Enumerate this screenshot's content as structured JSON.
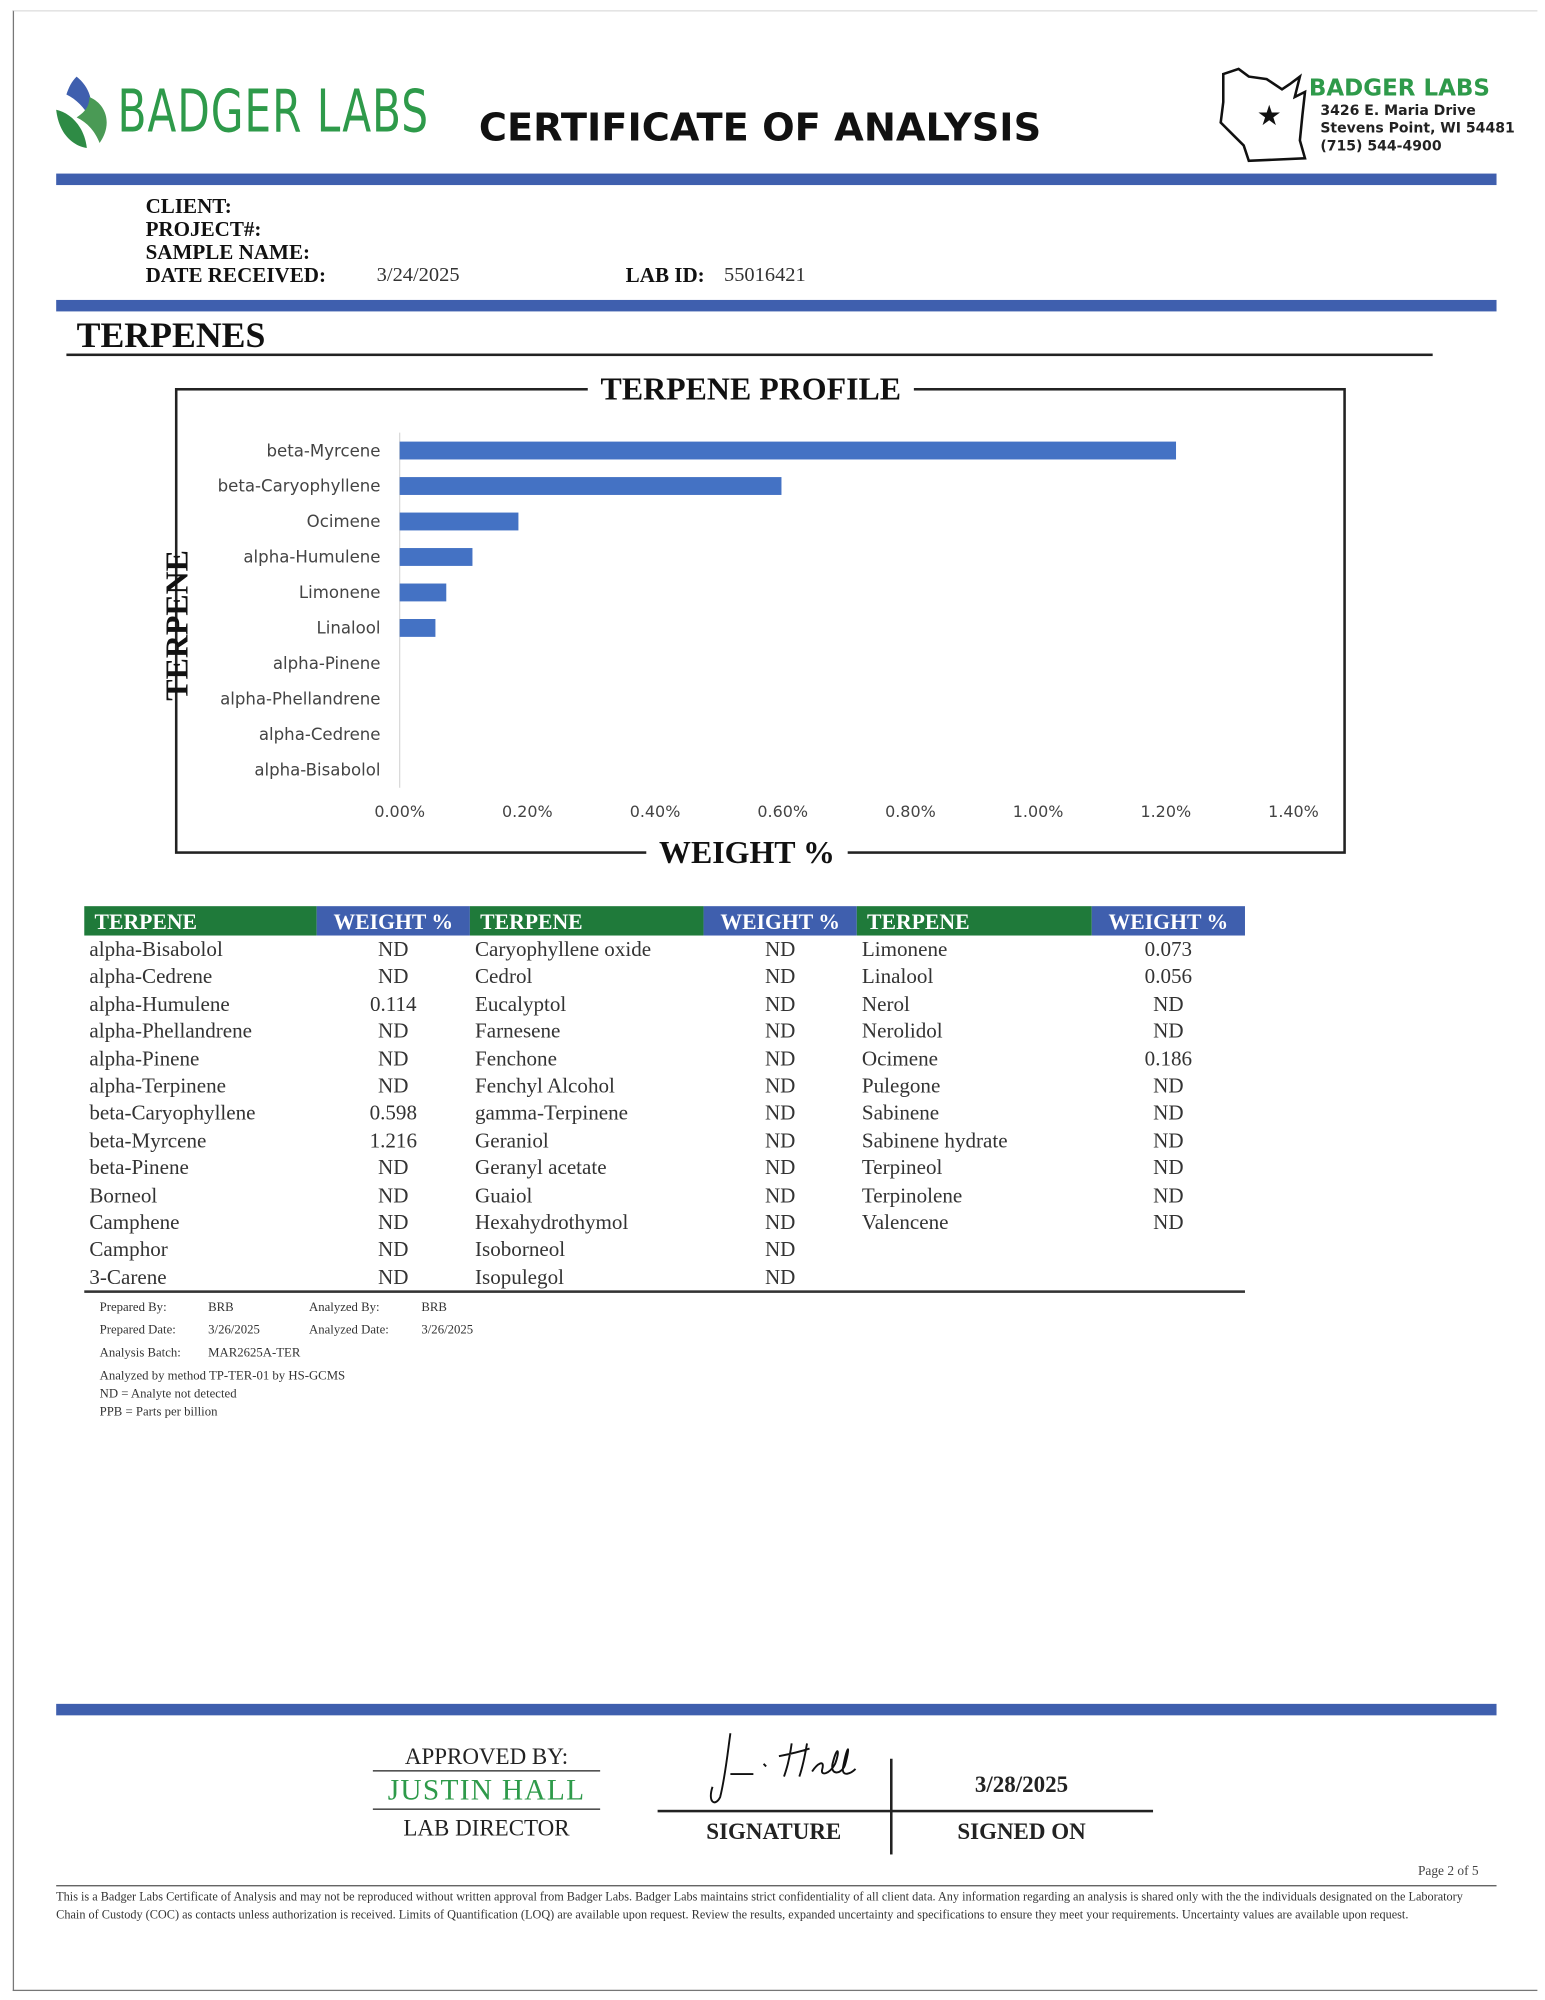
{
  "header": {
    "logo_text": "BADGER LABS",
    "title": "CERTIFICATE OF ANALYSIS",
    "address": {
      "name": "BADGER LABS",
      "street": "3426 E. Maria Drive",
      "city": "Stevens Point, WI 54481",
      "phone": "(715) 544-4900"
    }
  },
  "client_info": {
    "client_label": "CLIENT:",
    "project_label": "PROJECT#:",
    "sample_label": "SAMPLE NAME:",
    "date_received_label": "DATE RECEIVED:",
    "date_received": "3/24/2025",
    "lab_id_label": "LAB ID:",
    "lab_id": "55016421"
  },
  "section_title": "TERPENES",
  "chart_data": {
    "type": "bar",
    "orientation": "horizontal",
    "title": "TERPENE PROFILE",
    "x_label": "WEIGHT %",
    "y_label": "TERPENE",
    "categories": [
      "beta-Myrcene",
      "beta-Caryophyllene",
      "Ocimene",
      "alpha-Humulene",
      "Limonene",
      "Linalool",
      "alpha-Pinene",
      "alpha-Phellandrene",
      "alpha-Cedrene",
      "alpha-Bisabolol"
    ],
    "values": [
      1.216,
      0.598,
      0.186,
      0.114,
      0.073,
      0.056,
      0,
      0,
      0,
      0
    ],
    "color": "#4472c4",
    "xlim": [
      0,
      1.4
    ],
    "xticks": [
      {
        "value": 0,
        "label": "0.00%"
      },
      {
        "value": 0.2,
        "label": "0.20%"
      },
      {
        "value": 0.4,
        "label": "0.40%"
      },
      {
        "value": 0.6,
        "label": "0.60%"
      },
      {
        "value": 0.8,
        "label": "0.80%"
      },
      {
        "value": 1,
        "label": "1.00%"
      },
      {
        "value": 1.2,
        "label": "1.20%"
      },
      {
        "value": 1.4,
        "label": "1.40%"
      }
    ],
    "grid": false
  },
  "table": {
    "columns": [
      "TERPENE",
      "WEIGHT %"
    ],
    "groups": [
      [
        [
          "alpha-Bisabolol",
          "ND"
        ],
        [
          "alpha-Cedrene",
          "ND"
        ],
        [
          "alpha-Humulene",
          0.114
        ],
        [
          "alpha-Phellandrene",
          "ND"
        ],
        [
          "alpha-Pinene",
          "ND"
        ],
        [
          "alpha-Terpinene",
          "ND"
        ],
        [
          "beta-Caryophyllene",
          0.598
        ],
        [
          "beta-Myrcene",
          1.216
        ],
        [
          "beta-Pinene",
          "ND"
        ],
        [
          "Borneol",
          "ND"
        ],
        [
          "Camphene",
          "ND"
        ],
        [
          "Camphor",
          "ND"
        ],
        [
          "3-Carene",
          "ND"
        ]
      ],
      [
        [
          "Caryophyllene oxide",
          "ND"
        ],
        [
          "Cedrol",
          "ND"
        ],
        [
          "Eucalyptol",
          "ND"
        ],
        [
          "Farnesene",
          "ND"
        ],
        [
          "Fenchone",
          "ND"
        ],
        [
          "Fenchyl Alcohol",
          "ND"
        ],
        [
          "gamma-Terpinene",
          "ND"
        ],
        [
          "Geraniol",
          "ND"
        ],
        [
          "Geranyl acetate",
          "ND"
        ],
        [
          "Guaiol",
          "ND"
        ],
        [
          "Hexahydrothymol",
          "ND"
        ],
        [
          "Isoborneol",
          "ND"
        ],
        [
          "Isopulegol",
          "ND"
        ]
      ],
      [
        [
          "Limonene",
          0.073
        ],
        [
          "Linalool",
          0.056
        ],
        [
          "Nerol",
          "ND"
        ],
        [
          "Nerolidol",
          "ND"
        ],
        [
          "Ocimene",
          0.186
        ],
        [
          "Pulegone",
          "ND"
        ],
        [
          "Sabinene",
          "ND"
        ],
        [
          "Sabinene hydrate",
          "ND"
        ],
        [
          "Terpineol",
          "ND"
        ],
        [
          "Terpinolene",
          "ND"
        ],
        [
          "Valencene",
          "ND"
        ]
      ]
    ]
  },
  "notes": {
    "rows": [
      [
        "Prepared By:",
        "BRB",
        "Analyzed By:",
        "BRB"
      ],
      [
        "Prepared Date:",
        "3/26/2025",
        "Analyzed Date:",
        "3/26/2025"
      ],
      [
        "Analysis Batch:",
        "MAR2625A-TER"
      ]
    ],
    "lines": [
      "Analyzed by method TP-TER-01 by HS-GCMS",
      "ND = Analyte not detected",
      "PPB = Parts per billion"
    ]
  },
  "approval": {
    "approved_by_label": "APPROVED BY:",
    "name": "JUSTIN HALL",
    "role": "LAB DIRECTOR",
    "signature_label": "SIGNATURE",
    "signed_on_label": "SIGNED ON",
    "signed_on": "3/28/2025"
  },
  "footer": {
    "page": "Page 2 of 5",
    "disclaimer": "This is a Badger Labs Certificate of Analysis and may not be reproduced without written approval from Badger Labs. Badger Labs maintains strict confidentiality of all client data. Any information regarding an analysis is shared only with the the individuals designated on the Laboratory Chain of Custody (COC) as contacts unless authorization is received. Limits of Quantification (LOQ) are available upon request. Review the results, expanded uncertainty and specifications to ensure they meet your requirements. Uncertainty values are available upon request."
  }
}
